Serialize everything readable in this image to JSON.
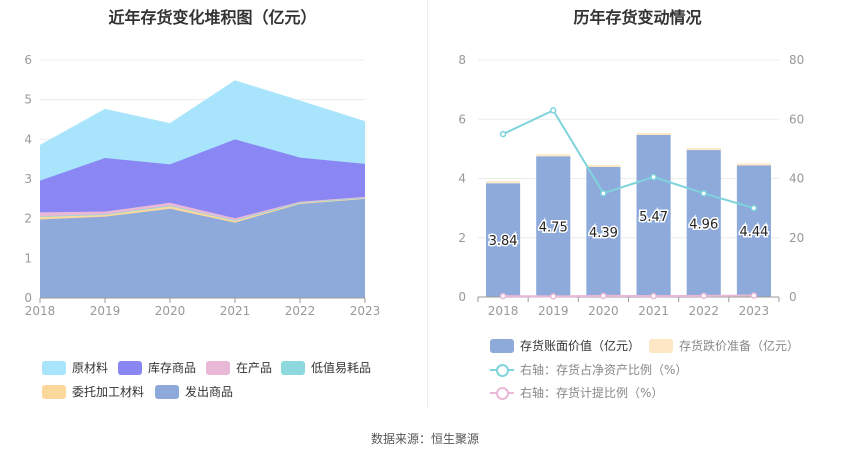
{
  "left_title": "近年存货变化堆积图（亿元）",
  "right_title": "历年存货变动情况",
  "source": "数据来源：恒生聚源",
  "chart_data": [
    {
      "type": "area",
      "title": "近年存货变化堆积图（亿元）",
      "x": [
        "2018",
        "2019",
        "2020",
        "2021",
        "2022",
        "2023"
      ],
      "ylim": [
        0,
        6
      ],
      "y_ticks": [
        "0",
        "1",
        "2",
        "3",
        "4",
        "5",
        "6"
      ],
      "stacked": true,
      "series": [
        {
          "name": "发出商品",
          "color": "#8eaadb",
          "values": [
            1.98,
            2.05,
            2.25,
            1.9,
            2.37,
            2.5
          ]
        },
        {
          "name": "委托加工材料",
          "color": "#fcd89c",
          "values": [
            0.07,
            0.05,
            0.07,
            0.05,
            0.03,
            0.02
          ]
        },
        {
          "name": "低值易耗品",
          "color": "#8dd8dc",
          "values": [
            0.01,
            0.01,
            0.01,
            0.01,
            0.01,
            0.01
          ]
        },
        {
          "name": "在产品",
          "color": "#e9b8d6",
          "values": [
            0.1,
            0.07,
            0.07,
            0.05,
            0.02,
            0.02
          ]
        },
        {
          "name": "库存商品",
          "color": "#8a87f5",
          "values": [
            0.8,
            1.35,
            0.97,
            1.99,
            1.11,
            0.83
          ]
        },
        {
          "name": "原材料",
          "color": "#a8e4fb",
          "values": [
            0.88,
            1.22,
            1.02,
            1.47,
            1.42,
            1.06
          ]
        }
      ],
      "legend": [
        {
          "name": "原材料",
          "color": "#a8e4fb"
        },
        {
          "name": "库存商品",
          "color": "#8a87f5"
        },
        {
          "name": "在产品",
          "color": "#e9b8d6"
        },
        {
          "name": "低值易耗品",
          "color": "#8dd8dc"
        },
        {
          "name": "委托加工材料",
          "color": "#fcd89c"
        },
        {
          "name": "发出商品",
          "color": "#8eaadb"
        }
      ]
    },
    {
      "type": "bar",
      "title": "历年存货变动情况",
      "categories": [
        "2018",
        "2019",
        "2020",
        "2021",
        "2022",
        "2023"
      ],
      "ylim_left": [
        0,
        8
      ],
      "ylim_right": [
        0,
        80
      ],
      "y_ticks_left": [
        "0",
        "2",
        "4",
        "6",
        "8"
      ],
      "y_ticks_right": [
        "0",
        "20",
        "40",
        "60",
        "80"
      ],
      "series": [
        {
          "name": "存货账面价值（亿元）",
          "type": "bar",
          "axis": "left",
          "color": "#8eaadb",
          "values": [
            3.84,
            4.75,
            4.39,
            5.47,
            4.96,
            4.44
          ],
          "labels": [
            "3.84",
            "4.75",
            "4.39",
            "5.47",
            "4.96",
            "4.44"
          ]
        },
        {
          "name": "存货跌价准备（亿元）",
          "type": "bar",
          "axis": "left",
          "color": "#fde7c4",
          "values": [
            0.01,
            0.01,
            0.02,
            0.02,
            0.02,
            0.02
          ]
        },
        {
          "name": "右轴：存货占净资产比例（%）",
          "type": "line",
          "axis": "right",
          "color": "#7ed3dc",
          "values": [
            55,
            63,
            35,
            40.5,
            35,
            30
          ]
        },
        {
          "name": "右轴：存货计提比例（%）",
          "type": "line",
          "axis": "right",
          "color": "#e9b8d6",
          "values": [
            0.3,
            0.2,
            0.4,
            0.3,
            0.4,
            0.5
          ]
        }
      ]
    }
  ]
}
